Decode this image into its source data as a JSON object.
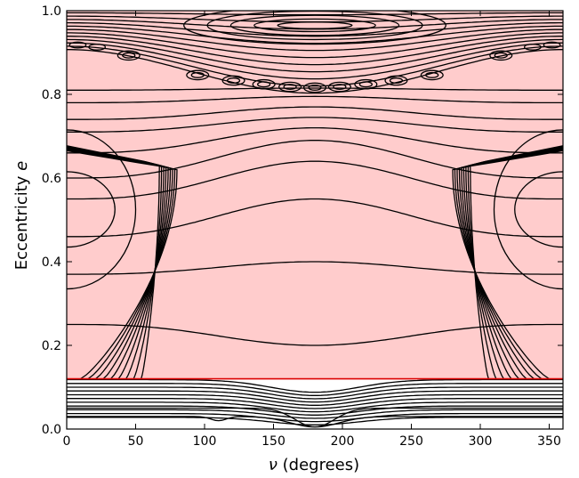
{
  "chart_data": {
    "type": "contour",
    "xlabel_symbol": "ν",
    "xlabel_text": " (degrees)",
    "ylabel_text": "Eccentricity ",
    "ylabel_symbol": "e",
    "xlim": [
      0,
      360
    ],
    "ylim": [
      0,
      1
    ],
    "xticks": [
      0,
      50,
      100,
      150,
      200,
      250,
      300,
      350
    ],
    "yticks": [
      "0.0",
      "0.2",
      "0.4",
      "0.6",
      "0.8",
      "1.0"
    ],
    "ytick_values": [
      0.0,
      0.2,
      0.4,
      0.6,
      0.8,
      1.0
    ],
    "threshold_e": 0.12,
    "colors": {
      "shaded_region": "#ffcccc",
      "threshold_line": "#dd0000",
      "contours": "#000000"
    },
    "grid": false
  }
}
